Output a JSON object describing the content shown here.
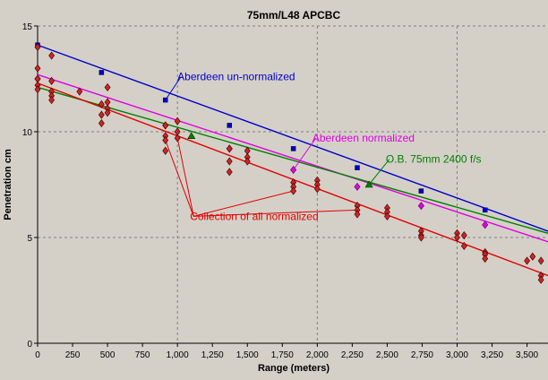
{
  "chart_data": {
    "type": "scatter",
    "title": "75mm/L48 APCBC",
    "xlabel": "Range (meters)",
    "ylabel": "Penetration cm",
    "xlim": [
      0,
      3650
    ],
    "ylim": [
      0,
      15
    ],
    "x_ticks": [
      0,
      250,
      500,
      750,
      1000,
      1250,
      1500,
      1750,
      2000,
      2250,
      2500,
      2750,
      3000,
      3250,
      3500
    ],
    "x_tick_labels": [
      "0",
      "250",
      "500",
      "750",
      "1,000",
      "1,250",
      "1,500",
      "1,750",
      "2,000",
      "2,250",
      "2,500",
      "2,750",
      "3,000",
      "3,250",
      "3,500"
    ],
    "y_ticks": [
      0,
      5,
      10,
      15
    ],
    "y_tick_labels": [
      "0",
      "5",
      "10",
      "15"
    ],
    "grid": true,
    "background": "#d4d0c8",
    "series": [
      {
        "name": "Aberdeen un-normalized",
        "color": "#0000c8",
        "marker": "square",
        "line_x": [
          0,
          3650
        ],
        "line_y": [
          14.1,
          5.3
        ],
        "points": [
          [
            0,
            14.1
          ],
          [
            457,
            12.8
          ],
          [
            914,
            11.5
          ],
          [
            1372,
            10.3
          ],
          [
            1829,
            9.2
          ],
          [
            2286,
            8.3
          ],
          [
            2743,
            7.2
          ],
          [
            3200,
            6.3
          ]
        ]
      },
      {
        "name": "Aberdeen normalized",
        "color": "#e000e0",
        "marker": "diamond",
        "line_x": [
          0,
          3650
        ],
        "line_y": [
          12.7,
          4.8
        ],
        "points": [
          [
            0,
            12.5
          ],
          [
            914,
            10.3
          ],
          [
            1372,
            9.2
          ],
          [
            1829,
            8.2
          ],
          [
            2286,
            7.4
          ],
          [
            2743,
            6.5
          ],
          [
            3200,
            5.6
          ]
        ]
      },
      {
        "name": "O.B. 75mm 2400 f/s",
        "color": "#008000",
        "marker": "triangle",
        "line_x": [
          0,
          3650
        ],
        "line_y": [
          12.1,
          5.2
        ],
        "points": [
          [
            1100,
            9.8
          ],
          [
            2370,
            7.5
          ]
        ]
      },
      {
        "name": "Collection of all normalized",
        "color": "#e00000",
        "marker": "diamond-filled",
        "line_x": [
          0,
          3650
        ],
        "line_y": [
          12.3,
          3.2
        ],
        "points": [
          [
            0,
            14.0
          ],
          [
            0,
            13.0
          ],
          [
            0,
            12.5
          ],
          [
            0,
            12.2
          ],
          [
            0,
            12.0
          ],
          [
            100,
            13.6
          ],
          [
            100,
            12.4
          ],
          [
            100,
            11.9
          ],
          [
            100,
            11.7
          ],
          [
            100,
            11.5
          ],
          [
            300,
            11.9
          ],
          [
            457,
            11.3
          ],
          [
            457,
            10.8
          ],
          [
            457,
            10.4
          ],
          [
            500,
            12.1
          ],
          [
            500,
            11.4
          ],
          [
            500,
            11.1
          ],
          [
            500,
            10.9
          ],
          [
            914,
            10.3
          ],
          [
            914,
            9.8
          ],
          [
            914,
            9.6
          ],
          [
            914,
            9.1
          ],
          [
            1000,
            10.5
          ],
          [
            1000,
            10.0
          ],
          [
            1000,
            9.7
          ],
          [
            1372,
            9.2
          ],
          [
            1372,
            8.6
          ],
          [
            1372,
            8.1
          ],
          [
            1500,
            9.1
          ],
          [
            1500,
            8.8
          ],
          [
            1500,
            8.6
          ],
          [
            1829,
            7.6
          ],
          [
            1829,
            7.4
          ],
          [
            1829,
            7.2
          ],
          [
            2000,
            7.7
          ],
          [
            2000,
            7.5
          ],
          [
            2000,
            7.3
          ],
          [
            2286,
            6.5
          ],
          [
            2286,
            6.3
          ],
          [
            2286,
            6.1
          ],
          [
            2500,
            6.4
          ],
          [
            2500,
            6.2
          ],
          [
            2500,
            6.0
          ],
          [
            2743,
            5.3
          ],
          [
            2743,
            5.1
          ],
          [
            2743,
            5.0
          ],
          [
            3000,
            5.2
          ],
          [
            3000,
            5.0
          ],
          [
            3050,
            5.1
          ],
          [
            3050,
            4.6
          ],
          [
            3200,
            4.3
          ],
          [
            3200,
            4.2
          ],
          [
            3200,
            4.0
          ],
          [
            3500,
            3.9
          ],
          [
            3540,
            4.1
          ],
          [
            3600,
            3.9
          ],
          [
            3600,
            3.2
          ],
          [
            3600,
            3.0
          ]
        ]
      }
    ],
    "annotations": [
      {
        "text": "Aberdeen un-normalized",
        "color": "#0000c8",
        "at": [
          1000,
          12.6
        ],
        "arrow_to": [
          [
            914,
            11.5
          ]
        ]
      },
      {
        "text": "Aberdeen normalized",
        "color": "#e000e0",
        "at": [
          1965,
          9.7
        ],
        "arrow_to": [
          [
            1829,
            8.2
          ]
        ]
      },
      {
        "text": "O.B. 75mm 2400 f/s",
        "color": "#008000",
        "at": [
          2490,
          8.7
        ],
        "arrow_to": [
          [
            2370,
            7.5
          ]
        ]
      },
      {
        "text": "Collection of all normalized",
        "color": "#e00000",
        "at": [
          1090,
          6.0
        ],
        "arrow_to": [
          [
            1000,
            9.7
          ],
          [
            914,
            9.6
          ],
          [
            1829,
            7.2
          ],
          [
            2286,
            6.3
          ]
        ]
      }
    ]
  }
}
